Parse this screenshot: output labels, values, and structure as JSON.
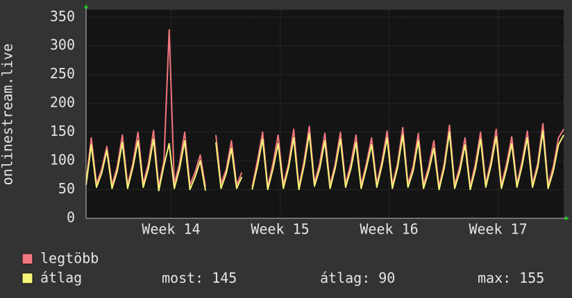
{
  "chart_data": {
    "type": "line",
    "y_label": "onlinestream.live",
    "x": [
      0,
      8,
      16,
      24,
      32,
      40,
      48,
      56,
      64,
      72,
      80,
      88,
      96,
      104,
      112,
      120,
      128,
      136,
      144,
      152,
      160,
      168,
      176,
      184,
      192,
      200,
      208,
      216,
      224,
      232,
      240,
      248,
      256,
      264,
      272,
      280,
      288,
      296,
      304,
      312,
      320,
      328,
      336,
      344,
      352,
      360,
      368,
      376,
      384,
      392,
      400,
      408,
      416,
      424,
      432,
      440,
      448,
      456,
      464,
      472,
      480,
      488,
      496,
      504,
      512,
      520,
      528,
      536,
      544,
      552,
      560,
      568,
      576,
      584,
      592,
      600,
      608,
      616,
      624,
      632,
      640,
      648,
      656,
      664,
      672,
      680,
      688,
      696,
      704,
      712,
      720,
      728,
      736
    ],
    "xlim": [
      0,
      736
    ],
    "xticks": [
      {
        "value": 131,
        "label": "Week 14"
      },
      {
        "value": 299,
        "label": "Week 15"
      },
      {
        "value": 467,
        "label": "Week 16"
      },
      {
        "value": 635,
        "label": "Week 17"
      }
    ],
    "ylim": [
      0,
      363
    ],
    "yticks": [
      0,
      50,
      100,
      150,
      200,
      250,
      300,
      350
    ],
    "grid": true,
    "series": [
      {
        "name": "legtöbb",
        "color": "#f2777f",
        "values": [
          62,
          140,
          60,
          85,
          125,
          58,
          90,
          145,
          58,
          95,
          150,
          60,
          95,
          153,
          55,
          100,
          328,
          60,
          95,
          150,
          58,
          80,
          110,
          55,
          null,
          145,
          60,
          85,
          135,
          58,
          80,
          null,
          55,
          100,
          150,
          55,
          95,
          145,
          58,
          95,
          155,
          55,
          100,
          160,
          62,
          95,
          148,
          58,
          95,
          150,
          60,
          95,
          145,
          58,
          95,
          140,
          60,
          100,
          152,
          58,
          95,
          158,
          60,
          90,
          148,
          58,
          90,
          135,
          55,
          95,
          162,
          58,
          90,
          140,
          55,
          95,
          150,
          60,
          100,
          155,
          58,
          95,
          142,
          60,
          100,
          152,
          60,
          95,
          165,
          58,
          90,
          140,
          155
        ]
      },
      {
        "name": "átlag",
        "color": "#f5f57a",
        "values": [
          58,
          128,
          54,
          78,
          118,
          52,
          82,
          132,
          52,
          88,
          135,
          54,
          86,
          138,
          48,
          92,
          130,
          52,
          86,
          135,
          50,
          72,
          100,
          48,
          null,
          132,
          52,
          78,
          122,
          52,
          72,
          null,
          50,
          90,
          138,
          50,
          86,
          130,
          52,
          88,
          140,
          50,
          92,
          148,
          56,
          86,
          135,
          52,
          88,
          138,
          54,
          86,
          132,
          52,
          88,
          128,
          54,
          92,
          140,
          52,
          88,
          145,
          54,
          82,
          135,
          52,
          82,
          122,
          50,
          88,
          150,
          52,
          82,
          128,
          50,
          86,
          138,
          54,
          92,
          142,
          52,
          86,
          130,
          54,
          92,
          140,
          54,
          88,
          152,
          52,
          82,
          128,
          145
        ]
      }
    ],
    "legend_stats": [
      {
        "label": "most:",
        "value": 145
      },
      {
        "label": "átlag:",
        "value": 90
      },
      {
        "label": "max:",
        "value": 155
      }
    ]
  }
}
